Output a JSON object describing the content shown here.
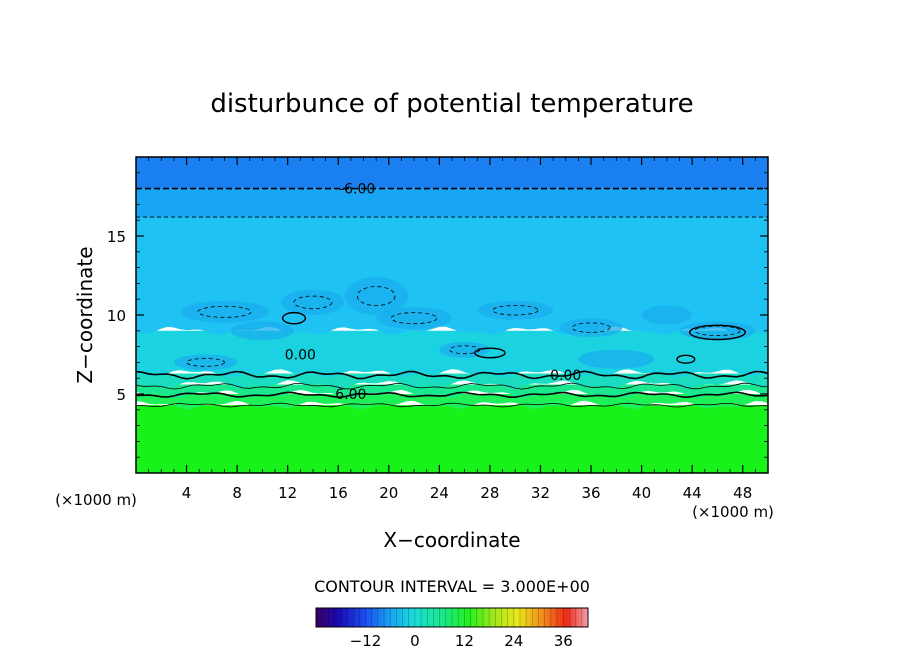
{
  "chart_data": {
    "type": "heatmap",
    "title": "disturbunce of potential temperature",
    "xlabel": "X−coordinate",
    "ylabel": "Z−coordinate",
    "x_unit": "(×1000 m)",
    "y_unit": "(×1000 m)",
    "xlim": [
      0,
      50
    ],
    "ylim": [
      0,
      20
    ],
    "x_ticks": [
      4,
      8,
      12,
      16,
      20,
      24,
      28,
      32,
      36,
      40,
      44,
      48
    ],
    "y_ticks": [
      5,
      10,
      15
    ],
    "contour_interval_text": "CONTOUR INTERVAL = 3.000E+00",
    "contour_labels": [
      {
        "text": "-6.00",
        "x": 17.5,
        "z": 18.0
      },
      {
        "text": "0.00",
        "x": 13,
        "z": 7.5
      },
      {
        "text": "0.00",
        "x": 34,
        "z": 6.2
      },
      {
        "text": "6.00",
        "x": 17,
        "z": 5.0
      }
    ],
    "bands": [
      {
        "z0": 0.0,
        "z1": 4.3,
        "value": 7.5,
        "color": "#19f21a"
      },
      {
        "z0": 4.3,
        "z1": 5.0,
        "value": 6.5,
        "color": "#1ef05a"
      },
      {
        "z0": 5.0,
        "z1": 5.6,
        "value": 4.5,
        "color": "#19e88e"
      },
      {
        "z0": 5.6,
        "z1": 6.3,
        "value": 1.5,
        "color": "#19dcc0"
      },
      {
        "z0": 6.3,
        "z1": 9.0,
        "value": -1.5,
        "color": "#1bd3e0"
      },
      {
        "z0": 9.0,
        "z1": 16.2,
        "value": -3.5,
        "color": "#1ec3f3"
      },
      {
        "z0": 16.2,
        "z1": 18.0,
        "value": -5.0,
        "color": "#18a5f4"
      },
      {
        "z0": 18.0,
        "z1": 20.0,
        "value": -7.0,
        "color": "#1a80f2"
      }
    ],
    "colorbar": {
      "ticks": [
        -12,
        0,
        12,
        24,
        36
      ],
      "range": [
        -24,
        42
      ]
    }
  }
}
